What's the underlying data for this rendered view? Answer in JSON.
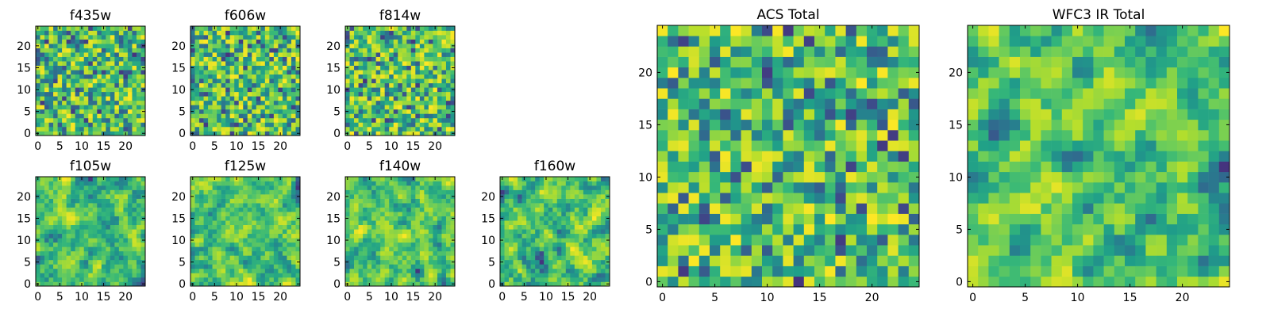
{
  "chart_data": [
    {
      "type": "heatmap",
      "title": "f435w",
      "xlabel": "",
      "ylabel": "",
      "xlim": [
        -0.5,
        24.5
      ],
      "ylim": [
        -0.5,
        24.5
      ],
      "xticks": [
        "0",
        "5",
        "10",
        "15",
        "20"
      ],
      "yticks": [
        "0",
        "5",
        "10",
        "15",
        "20"
      ],
      "grid": [
        25,
        25
      ],
      "colormap": "viridis",
      "seed": 11,
      "smoothness": 0
    },
    {
      "type": "heatmap",
      "title": "f606w",
      "xlabel": "",
      "ylabel": "",
      "xlim": [
        -0.5,
        24.5
      ],
      "ylim": [
        -0.5,
        24.5
      ],
      "xticks": [
        "0",
        "5",
        "10",
        "15",
        "20"
      ],
      "yticks": [
        "0",
        "5",
        "10",
        "15",
        "20"
      ],
      "grid": [
        25,
        25
      ],
      "colormap": "viridis",
      "seed": 23,
      "smoothness": 0
    },
    {
      "type": "heatmap",
      "title": "f814w",
      "xlabel": "",
      "ylabel": "",
      "xlim": [
        -0.5,
        24.5
      ],
      "ylim": [
        -0.5,
        24.5
      ],
      "xticks": [
        "0",
        "5",
        "10",
        "15",
        "20"
      ],
      "yticks": [
        "0",
        "5",
        "10",
        "15",
        "20"
      ],
      "grid": [
        25,
        25
      ],
      "colormap": "viridis",
      "seed": 37,
      "smoothness": 0
    },
    {
      "type": "heatmap",
      "title": "f105w",
      "xlabel": "",
      "ylabel": "",
      "xlim": [
        -0.5,
        24.5
      ],
      "ylim": [
        -0.5,
        24.5
      ],
      "xticks": [
        "0",
        "5",
        "10",
        "15",
        "20"
      ],
      "yticks": [
        "0",
        "5",
        "10",
        "15",
        "20"
      ],
      "grid": [
        25,
        25
      ],
      "colormap": "viridis",
      "seed": 41,
      "smoothness": 1
    },
    {
      "type": "heatmap",
      "title": "f125w",
      "xlabel": "",
      "ylabel": "",
      "xlim": [
        -0.5,
        24.5
      ],
      "ylim": [
        -0.5,
        24.5
      ],
      "xticks": [
        "0",
        "5",
        "10",
        "15",
        "20"
      ],
      "yticks": [
        "0",
        "5",
        "10",
        "15",
        "20"
      ],
      "grid": [
        25,
        25
      ],
      "colormap": "viridis",
      "seed": 53,
      "smoothness": 1
    },
    {
      "type": "heatmap",
      "title": "f140w",
      "xlabel": "",
      "ylabel": "",
      "xlim": [
        -0.5,
        24.5
      ],
      "ylim": [
        -0.5,
        24.5
      ],
      "xticks": [
        "0",
        "5",
        "10",
        "15",
        "20"
      ],
      "yticks": [
        "0",
        "5",
        "10",
        "15",
        "20"
      ],
      "grid": [
        25,
        25
      ],
      "colormap": "viridis",
      "seed": 67,
      "smoothness": 1
    },
    {
      "type": "heatmap",
      "title": "f160w",
      "xlabel": "",
      "ylabel": "",
      "xlim": [
        -0.5,
        24.5
      ],
      "ylim": [
        -0.5,
        24.5
      ],
      "xticks": [
        "0",
        "5",
        "10",
        "15",
        "20"
      ],
      "yticks": [
        "0",
        "5",
        "10",
        "15",
        "20"
      ],
      "grid": [
        25,
        25
      ],
      "colormap": "viridis",
      "seed": 79,
      "smoothness": 1
    },
    {
      "type": "heatmap",
      "title": "ACS Total",
      "xlabel": "",
      "ylabel": "",
      "xlim": [
        -0.5,
        24.5
      ],
      "ylim": [
        -0.5,
        24.5
      ],
      "xticks": [
        "0",
        "5",
        "10",
        "15",
        "20"
      ],
      "yticks": [
        "0",
        "5",
        "10",
        "15",
        "20"
      ],
      "grid": [
        25,
        25
      ],
      "colormap": "viridis",
      "seed": 97,
      "smoothness": 0
    },
    {
      "type": "heatmap",
      "title": "WFC3 IR Total",
      "xlabel": "",
      "ylabel": "",
      "xlim": [
        -0.5,
        24.5
      ],
      "ylim": [
        -0.5,
        24.5
      ],
      "xticks": [
        "0",
        "5",
        "10",
        "15",
        "20"
      ],
      "yticks": [
        "0",
        "5",
        "10",
        "15",
        "20"
      ],
      "grid": [
        25,
        25
      ],
      "colormap": "viridis",
      "seed": 113,
      "smoothness": 1
    }
  ],
  "colors": {
    "frame": "#000000",
    "background": "#ffffff"
  }
}
